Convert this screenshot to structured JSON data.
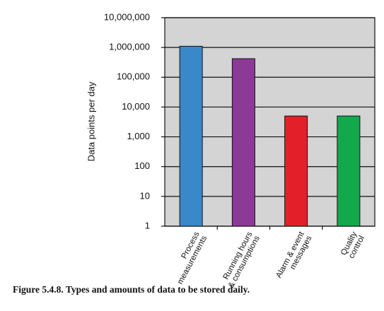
{
  "chart_data": {
    "type": "bar",
    "log_scale": true,
    "grid": true,
    "y_label": "Data points per day",
    "caption": "Figure 5.4.8. Types and amounts of data to be stored daily.",
    "categories": [
      "Process\nmeasurements",
      "Running hours\n& consumptions",
      "Alarm & event\nmessages",
      "Quality\ncontrol"
    ],
    "values": [
      1100000,
      420000,
      5000,
      5000
    ],
    "colors": [
      "#3a87c9",
      "#8b3a96",
      "#e3202a",
      "#14a84d"
    ],
    "ylim": [
      1,
      10000000
    ],
    "yticks": [
      1,
      10,
      100,
      {
        "value": 1000,
        "label": "1,000"
      },
      {
        "value": 10000,
        "label": "10,000"
      },
      {
        "value": 100000,
        "label": "100,000"
      },
      {
        "value": 1000000,
        "label": "1,000,000"
      },
      {
        "value": 10000000,
        "label": "10,000,000"
      }
    ]
  }
}
